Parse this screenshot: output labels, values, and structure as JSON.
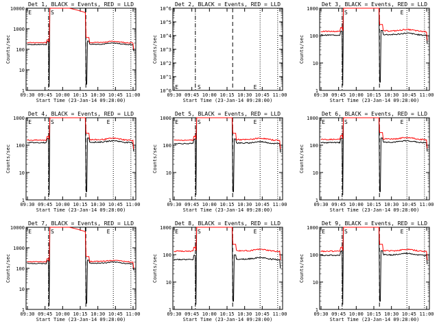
{
  "x_ticks": [
    "09:30",
    "09:45",
    "10:00",
    "10:15",
    "10:30",
    "10:45",
    "11:00"
  ],
  "y_ticks_default": [
    "1",
    "10",
    "100",
    "1000",
    "10000"
  ],
  "y_ticks_det2": [
    "10^0",
    "10^1",
    "10^2",
    "10^3",
    "10^4",
    "10^5",
    "10^6"
  ],
  "ylabel": "Counts/sec",
  "xlabel": "Start Time (23-Jan-14 09:28:00)",
  "colors": {
    "events": "#000000",
    "lld": "#ff0000"
  },
  "chart_data": [
    {
      "type": "line",
      "title": "Det 1, BLACK = Events, RED = LLD",
      "xlabel": "Start Time (23-Jan-14 09:28:00)",
      "ylabel": "Counts/sec",
      "log_y": true,
      "ylim": [
        1,
        10000
      ],
      "markers": [
        "E",
        "S"
      ],
      "events_level": 180,
      "lld_level": 220,
      "flare": true
    },
    {
      "type": "line",
      "title": "Det 2, BLACK = Events, RED = LLD",
      "xlabel": "Start Time (23-Jan-14 09:28:00)",
      "ylabel": "Counts/sec",
      "log_y": true,
      "ylim": [
        1,
        1000000
      ],
      "markers": [
        "E",
        "S",
        "E"
      ],
      "empty": true
    },
    {
      "type": "line",
      "title": "Det 3, BLACK = Events, RED = LLD",
      "xlabel": "Start Time (23-Jan-14 09:28:00)",
      "ylabel": "Counts/sec",
      "log_y": true,
      "ylim": [
        1,
        1000
      ],
      "markers": [
        "S",
        "E"
      ],
      "events_level": 110,
      "lld_level": 150
    },
    {
      "type": "line",
      "title": "Det 4, BLACK = Events, RED = LLD",
      "xlabel": "Start Time (23-Jan-14 09:28:00)",
      "ylabel": "Counts/sec",
      "log_y": true,
      "ylim": [
        1,
        1000
      ],
      "markers": [
        "E",
        "S",
        "E"
      ],
      "events_level": 130,
      "lld_level": 160
    },
    {
      "type": "line",
      "title": "Det 5, BLACK = Events, RED = LLD",
      "xlabel": "Start Time (23-Jan-14 09:28:00)",
      "ylabel": "Counts/sec",
      "log_y": true,
      "ylim": [
        1,
        1000
      ],
      "markers": [
        "E",
        "S",
        "E"
      ],
      "events_level": 120,
      "lld_level": 160
    },
    {
      "type": "line",
      "title": "Det 6, BLACK = Events, RED = LLD",
      "xlabel": "Start Time (23-Jan-14 09:28:00)",
      "ylabel": "Counts/sec",
      "log_y": true,
      "ylim": [
        1,
        1000
      ],
      "markers": [
        "E",
        "S",
        "E"
      ],
      "events_level": 130,
      "lld_level": 170
    },
    {
      "type": "line",
      "title": "Det 7, BLACK = Events, RED = LLD",
      "xlabel": "Start Time (23-Jan-14 09:28:00)",
      "ylabel": "Counts/sec",
      "log_y": true,
      "ylim": [
        1,
        10000
      ],
      "markers": [
        "E",
        "S",
        "E"
      ],
      "events_level": 180,
      "lld_level": 220,
      "flare": true
    },
    {
      "type": "line",
      "title": "Det 8, BLACK = Events, RED = LLD",
      "xlabel": "Start Time (23-Jan-14 09:28:00)",
      "ylabel": "Counts/sec",
      "log_y": true,
      "ylim": [
        1,
        1000
      ],
      "markers": [
        "E",
        "S",
        "E"
      ],
      "events_level": 70,
      "lld_level": 140
    },
    {
      "type": "line",
      "title": "Det 9, BLACK = Events, RED = LLD",
      "xlabel": "Start Time (23-Jan-14 09:28:00)",
      "ylabel": "Counts/sec",
      "log_y": true,
      "ylim": [
        1,
        1000
      ],
      "markers": [
        "E",
        "S",
        "E"
      ],
      "events_level": 100,
      "lld_level": 140
    }
  ]
}
